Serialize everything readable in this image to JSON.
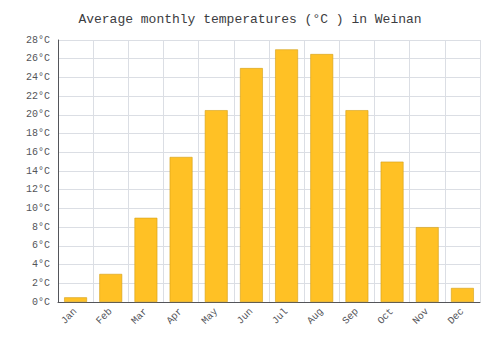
{
  "chart_data": {
    "type": "bar",
    "title": "Average monthly temperatures (°C ) in Weinan",
    "categories": [
      "Jan",
      "Feb",
      "Mar",
      "Apr",
      "May",
      "Jun",
      "Jul",
      "Aug",
      "Sep",
      "Oct",
      "Nov",
      "Dec"
    ],
    "values": [
      0.5,
      3.0,
      9.0,
      15.5,
      20.5,
      25.0,
      27.0,
      26.5,
      20.5,
      15.0,
      8.0,
      1.5
    ],
    "color": "#FFC125",
    "ylim": [
      0,
      28
    ],
    "yticks": [
      {
        "value": 0,
        "label": "0°C"
      },
      {
        "value": 2,
        "label": "2°C"
      },
      {
        "value": 4,
        "label": "4°C"
      },
      {
        "value": 6,
        "label": "6°C"
      },
      {
        "value": 8,
        "label": "8°C"
      },
      {
        "value": 10,
        "label": "10°C"
      },
      {
        "value": 12,
        "label": "12°C"
      },
      {
        "value": 14,
        "label": "14°C"
      },
      {
        "value": 16,
        "label": "16°C"
      },
      {
        "value": 18,
        "label": "18°C"
      },
      {
        "value": 20,
        "label": "20°C"
      },
      {
        "value": 22,
        "label": "22°C"
      },
      {
        "value": 24,
        "label": "24°C"
      },
      {
        "value": 26,
        "label": "26°C"
      },
      {
        "value": 28,
        "label": "28°C"
      }
    ],
    "grid": true
  }
}
